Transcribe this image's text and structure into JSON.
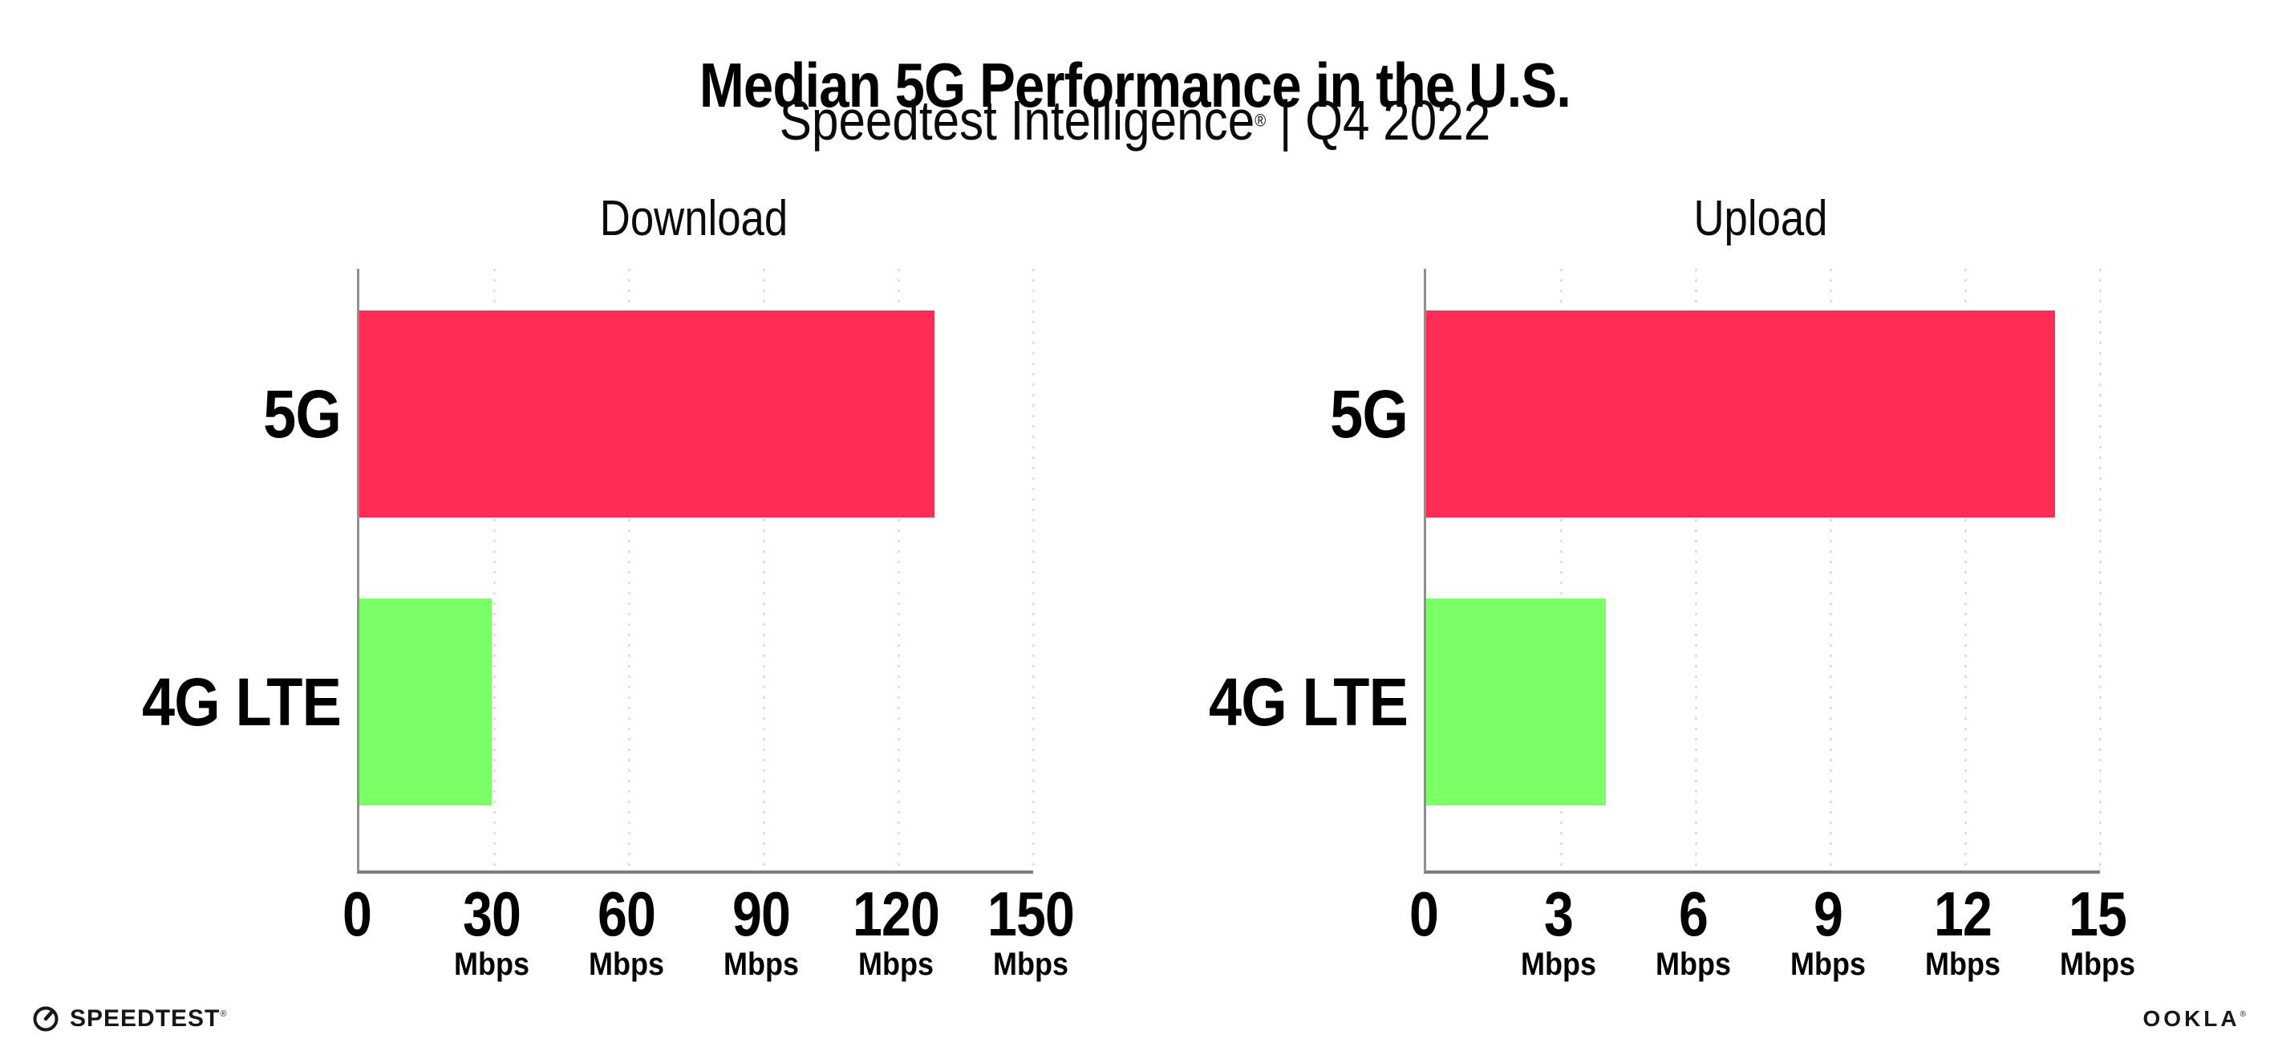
{
  "header": {
    "title": "Median 5G Performance in the U.S.",
    "subtitle_brand": "Speedtest Intelligence",
    "subtitle_reg": "®",
    "subtitle_period": " | Q4 2022"
  },
  "chart_data": {
    "type": "bar",
    "orientation": "horizontal",
    "unit": "Mbps",
    "categories": [
      "5G",
      "4G LTE"
    ],
    "series_colors": {
      "bar_5g": "#ff2d55",
      "bar_4g_lte": "#7dff66"
    },
    "grid": {
      "style": "dotted-vertical",
      "grid_color": "#dedeea",
      "axis_color": "#8f8f8f"
    },
    "legend": "none",
    "background": "#ffffff",
    "charts": [
      {
        "title": "Download",
        "xlim": [
          0,
          150
        ],
        "xticks": [
          0,
          30,
          60,
          90,
          120,
          150
        ],
        "values": [
          {
            "category": "5G",
            "mbps": 128
          },
          {
            "category": "4G LTE",
            "mbps": 29.5
          }
        ]
      },
      {
        "title": "Upload",
        "xlim": [
          0,
          15
        ],
        "xticks": [
          0,
          3,
          6,
          9,
          12,
          15
        ],
        "values": [
          {
            "category": "5G",
            "mbps": 14
          },
          {
            "category": "4G LTE",
            "mbps": 4
          }
        ]
      }
    ]
  },
  "footer": {
    "speedtest_label": "SPEEDTEST",
    "speedtest_reg": "®",
    "ookla_label": "OOKLA",
    "ookla_reg": "®"
  }
}
